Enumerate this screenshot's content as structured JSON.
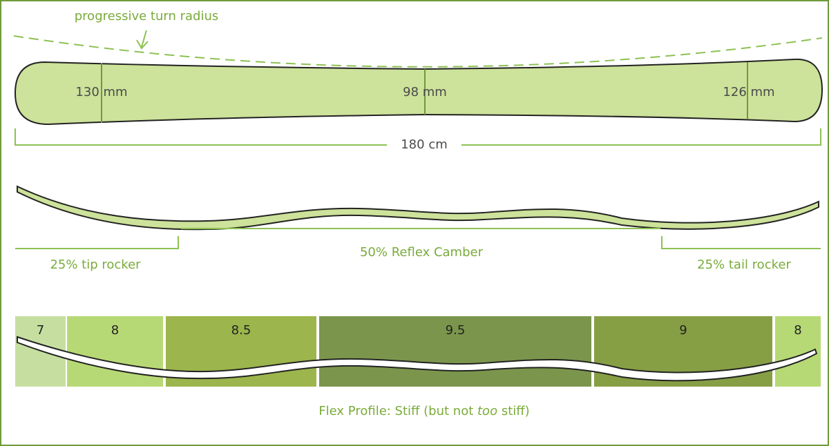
{
  "turn_radius_label": "progressive turn radius",
  "widths": {
    "tip": "130 mm",
    "waist": "98 mm",
    "tail": "126 mm"
  },
  "length": "180 cm",
  "profile": {
    "tip": "25% tip rocker",
    "center": "50% Reflex Camber",
    "tail": "25% tail rocker"
  },
  "flex": {
    "segments": [
      "7",
      "8",
      "8.5",
      "9.5",
      "9",
      "8"
    ],
    "caption": {
      "lead": "Flex Profile:  Stiff (but not ",
      "emphasis": "too",
      "tail": " stiff)"
    }
  }
}
